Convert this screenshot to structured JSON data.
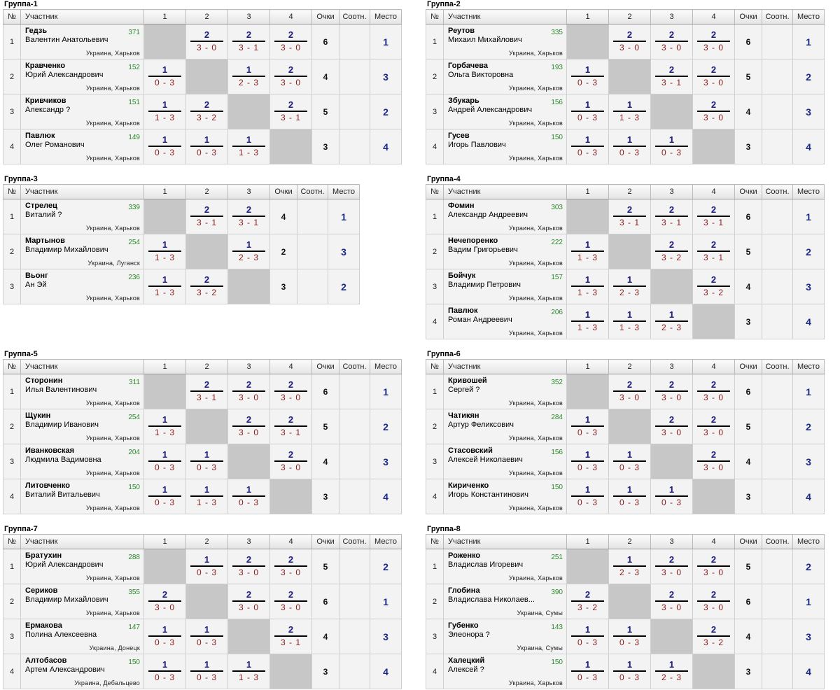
{
  "headers": {
    "num": "№",
    "player": "Участник",
    "points": "Очки",
    "ratio": "Соотн.",
    "place": "Место"
  },
  "groups": [
    {
      "title": "Группа-1",
      "players": [
        {
          "n": "1",
          "surname": "Гедзь",
          "given": "Валентин Анатольевич",
          "rating": "371",
          "loc": "Украина, Харьков",
          "results": [
            null,
            [
              "2",
              "3 - 0"
            ],
            [
              "2",
              "3 - 1"
            ],
            [
              "2",
              "3 - 0"
            ]
          ],
          "points": "6",
          "ratio": "",
          "place": "1"
        },
        {
          "n": "2",
          "surname": "Кравченко",
          "given": "Юрий Александрович",
          "rating": "152",
          "loc": "Украина, Харьков",
          "results": [
            [
              "1",
              "0 - 3"
            ],
            null,
            [
              "1",
              "2 - 3"
            ],
            [
              "2",
              "3 - 0"
            ]
          ],
          "points": "4",
          "ratio": "",
          "place": "3"
        },
        {
          "n": "3",
          "surname": "Кривчиков",
          "given": "Александр ?",
          "rating": "151",
          "loc": "Украина, Харьков",
          "results": [
            [
              "1",
              "1 - 3"
            ],
            [
              "2",
              "3 - 2"
            ],
            null,
            [
              "2",
              "3 - 1"
            ]
          ],
          "points": "5",
          "ratio": "",
          "place": "2"
        },
        {
          "n": "4",
          "surname": "Павлюк",
          "given": "Олег Романович",
          "rating": "149",
          "loc": "Украина, Харьков",
          "results": [
            [
              "1",
              "0 - 3"
            ],
            [
              "1",
              "0 - 3"
            ],
            [
              "1",
              "1 - 3"
            ],
            null
          ],
          "points": "3",
          "ratio": "",
          "place": "4"
        }
      ]
    },
    {
      "title": "Группа-2",
      "players": [
        {
          "n": "1",
          "surname": "Реутов",
          "given": "Михаил Михайлович",
          "rating": "335",
          "loc": "Украина, Харьков",
          "results": [
            null,
            [
              "2",
              "3 - 0"
            ],
            [
              "2",
              "3 - 0"
            ],
            [
              "2",
              "3 - 0"
            ]
          ],
          "points": "6",
          "ratio": "",
          "place": "1"
        },
        {
          "n": "2",
          "surname": "Горбачева",
          "given": "Ольга Викторовна",
          "rating": "193",
          "loc": "Украина, Харьков",
          "results": [
            [
              "1",
              "0 - 3"
            ],
            null,
            [
              "2",
              "3 - 1"
            ],
            [
              "2",
              "3 - 0"
            ]
          ],
          "points": "5",
          "ratio": "",
          "place": "2"
        },
        {
          "n": "3",
          "surname": "Збукарь",
          "given": "Андрей Александрович",
          "rating": "156",
          "loc": "Украина, Харьков",
          "results": [
            [
              "1",
              "0 - 3"
            ],
            [
              "1",
              "1 - 3"
            ],
            null,
            [
              "2",
              "3 - 0"
            ]
          ],
          "points": "4",
          "ratio": "",
          "place": "3"
        },
        {
          "n": "4",
          "surname": "Гусев",
          "given": "Игорь Павлович",
          "rating": "150",
          "loc": "Украина, Харьков",
          "results": [
            [
              "1",
              "0 - 3"
            ],
            [
              "1",
              "0 - 3"
            ],
            [
              "1",
              "0 - 3"
            ],
            null
          ],
          "points": "3",
          "ratio": "",
          "place": "4"
        }
      ]
    },
    {
      "title": "Группа-3",
      "players": [
        {
          "n": "1",
          "surname": "Стрелец",
          "given": "Виталий ?",
          "rating": "339",
          "loc": "Украина, Харьков",
          "results": [
            null,
            [
              "2",
              "3 - 1"
            ],
            [
              "2",
              "3 - 1"
            ]
          ],
          "points": "4",
          "ratio": "",
          "place": "1"
        },
        {
          "n": "2",
          "surname": "Мартынов",
          "given": "Владимир Михайлович",
          "rating": "254",
          "loc": "Украина, Луганск",
          "results": [
            [
              "1",
              "1 - 3"
            ],
            null,
            [
              "1",
              "2 - 3"
            ]
          ],
          "points": "2",
          "ratio": "",
          "place": "3"
        },
        {
          "n": "3",
          "surname": "Вьонг",
          "given": "Ан Эй",
          "rating": "236",
          "loc": "Украина, Харьков",
          "results": [
            [
              "1",
              "1 - 3"
            ],
            [
              "2",
              "3 - 2"
            ],
            null
          ],
          "points": "3",
          "ratio": "",
          "place": "2"
        }
      ]
    },
    {
      "title": "Группа-4",
      "players": [
        {
          "n": "1",
          "surname": "Фомин",
          "given": "Александр Андреевич",
          "rating": "303",
          "loc": "Украина, Харьков",
          "results": [
            null,
            [
              "2",
              "3 - 1"
            ],
            [
              "2",
              "3 - 1"
            ],
            [
              "2",
              "3 - 1"
            ]
          ],
          "points": "6",
          "ratio": "",
          "place": "1"
        },
        {
          "n": "2",
          "surname": "Нечепоренко",
          "given": "Вадим Григорьевич",
          "rating": "222",
          "loc": "Украина, Харьков",
          "results": [
            [
              "1",
              "1 - 3"
            ],
            null,
            [
              "2",
              "3 - 2"
            ],
            [
              "2",
              "3 - 1"
            ]
          ],
          "points": "5",
          "ratio": "",
          "place": "2"
        },
        {
          "n": "3",
          "surname": "Бойчук",
          "given": "Владимир Петрович",
          "rating": "157",
          "loc": "Украина, Харьков",
          "results": [
            [
              "1",
              "1 - 3"
            ],
            [
              "1",
              "2 - 3"
            ],
            null,
            [
              "2",
              "3 - 2"
            ]
          ],
          "points": "4",
          "ratio": "",
          "place": "3"
        },
        {
          "n": "4",
          "surname": "Павлюк",
          "given": "Роман Андреевич",
          "rating": "206",
          "loc": "Украина, Харьков",
          "results": [
            [
              "1",
              "1 - 3"
            ],
            [
              "1",
              "1 - 3"
            ],
            [
              "1",
              "2 - 3"
            ],
            null
          ],
          "points": "3",
          "ratio": "",
          "place": "4"
        }
      ]
    },
    {
      "title": "Группа-5",
      "players": [
        {
          "n": "1",
          "surname": "Сторонин",
          "given": "Илья Валентинович",
          "rating": "311",
          "loc": "Украина, Харьков",
          "results": [
            null,
            [
              "2",
              "3 - 1"
            ],
            [
              "2",
              "3 - 0"
            ],
            [
              "2",
              "3 - 0"
            ]
          ],
          "points": "6",
          "ratio": "",
          "place": "1"
        },
        {
          "n": "2",
          "surname": "Щукин",
          "given": "Владимир Иванович",
          "rating": "254",
          "loc": "Украина, Харьков",
          "results": [
            [
              "1",
              "1 - 3"
            ],
            null,
            [
              "2",
              "3 - 0"
            ],
            [
              "2",
              "3 - 1"
            ]
          ],
          "points": "5",
          "ratio": "",
          "place": "2"
        },
        {
          "n": "3",
          "surname": "Иванковская",
          "given": "Людмила Вадимовна",
          "rating": "204",
          "loc": "Украина, Харьков",
          "results": [
            [
              "1",
              "0 - 3"
            ],
            [
              "1",
              "0 - 3"
            ],
            null,
            [
              "2",
              "3 - 0"
            ]
          ],
          "points": "4",
          "ratio": "",
          "place": "3"
        },
        {
          "n": "4",
          "surname": "Литовченко",
          "given": "Виталий Витальевич",
          "rating": "150",
          "loc": "Украина, Харьков",
          "results": [
            [
              "1",
              "0 - 3"
            ],
            [
              "1",
              "1 - 3"
            ],
            [
              "1",
              "0 - 3"
            ],
            null
          ],
          "points": "3",
          "ratio": "",
          "place": "4"
        }
      ]
    },
    {
      "title": "Группа-6",
      "players": [
        {
          "n": "1",
          "surname": "Кривошей",
          "given": "Сергей ?",
          "rating": "352",
          "loc": "Украина, Харьков",
          "results": [
            null,
            [
              "2",
              "3 - 0"
            ],
            [
              "2",
              "3 - 0"
            ],
            [
              "2",
              "3 - 0"
            ]
          ],
          "points": "6",
          "ratio": "",
          "place": "1"
        },
        {
          "n": "2",
          "surname": "Чатикян",
          "given": "Артур Феликсович",
          "rating": "284",
          "loc": "Украина, Харьков",
          "results": [
            [
              "1",
              "0 - 3"
            ],
            null,
            [
              "2",
              "3 - 0"
            ],
            [
              "2",
              "3 - 0"
            ]
          ],
          "points": "5",
          "ratio": "",
          "place": "2"
        },
        {
          "n": "3",
          "surname": "Стасовский",
          "given": "Алексей Николаевич",
          "rating": "156",
          "loc": "Украина, Харьков",
          "results": [
            [
              "1",
              "0 - 3"
            ],
            [
              "1",
              "0 - 3"
            ],
            null,
            [
              "2",
              "3 - 0"
            ]
          ],
          "points": "4",
          "ratio": "",
          "place": "3"
        },
        {
          "n": "4",
          "surname": "Кириченко",
          "given": "Игорь Константинович",
          "rating": "150",
          "loc": "Украина, Харьков",
          "results": [
            [
              "1",
              "0 - 3"
            ],
            [
              "1",
              "0 - 3"
            ],
            [
              "1",
              "0 - 3"
            ],
            null
          ],
          "points": "3",
          "ratio": "",
          "place": "4"
        }
      ]
    },
    {
      "title": "Группа-7",
      "players": [
        {
          "n": "1",
          "surname": "Братухин",
          "given": "Юрий Александрович",
          "rating": "288",
          "loc": "Украина, Харьков",
          "results": [
            null,
            [
              "1",
              "0 - 3"
            ],
            [
              "2",
              "3 - 0"
            ],
            [
              "2",
              "3 - 0"
            ]
          ],
          "points": "5",
          "ratio": "",
          "place": "2"
        },
        {
          "n": "2",
          "surname": "Сериков",
          "given": "Владимир Михайлович",
          "rating": "355",
          "loc": "Украина, Харьков",
          "results": [
            [
              "2",
              "3 - 0"
            ],
            null,
            [
              "2",
              "3 - 0"
            ],
            [
              "2",
              "3 - 0"
            ]
          ],
          "points": "6",
          "ratio": "",
          "place": "1"
        },
        {
          "n": "3",
          "surname": "Ермакова",
          "given": "Полина Алексеевна",
          "rating": "147",
          "loc": "Украина, Донецк",
          "results": [
            [
              "1",
              "0 - 3"
            ],
            [
              "1",
              "0 - 3"
            ],
            null,
            [
              "2",
              "3 - 1"
            ]
          ],
          "points": "4",
          "ratio": "",
          "place": "3"
        },
        {
          "n": "4",
          "surname": "Алтобасов",
          "given": "Артем Александрович",
          "rating": "150",
          "loc": "Украина, Дебальцево",
          "results": [
            [
              "1",
              "0 - 3"
            ],
            [
              "1",
              "0 - 3"
            ],
            [
              "1",
              "1 - 3"
            ],
            null
          ],
          "points": "3",
          "ratio": "",
          "place": "4"
        }
      ]
    },
    {
      "title": "Группа-8",
      "players": [
        {
          "n": "1",
          "surname": "Роженко",
          "given": "Владислав Игоревич",
          "rating": "251",
          "loc": "Украина, Харьков",
          "results": [
            null,
            [
              "1",
              "2 - 3"
            ],
            [
              "2",
              "3 - 0"
            ],
            [
              "2",
              "3 - 0"
            ]
          ],
          "points": "5",
          "ratio": "",
          "place": "2"
        },
        {
          "n": "2",
          "surname": "Глобина",
          "given": "Владислава Николаев...",
          "rating": "390",
          "loc": "Украина, Сумы",
          "results": [
            [
              "2",
              "3 - 2"
            ],
            null,
            [
              "2",
              "3 - 0"
            ],
            [
              "2",
              "3 - 0"
            ]
          ],
          "points": "6",
          "ratio": "",
          "place": "1"
        },
        {
          "n": "3",
          "surname": "Губенко",
          "given": "Элеонора ?",
          "rating": "143",
          "loc": "Украина, Сумы",
          "results": [
            [
              "1",
              "0 - 3"
            ],
            [
              "1",
              "0 - 3"
            ],
            null,
            [
              "2",
              "3 - 2"
            ]
          ],
          "points": "4",
          "ratio": "",
          "place": "3"
        },
        {
          "n": "4",
          "surname": "Халецкий",
          "given": "Алексей ?",
          "rating": "150",
          "loc": "Украина, Харьков",
          "results": [
            [
              "1",
              "0 - 3"
            ],
            [
              "1",
              "0 - 3"
            ],
            [
              "1",
              "2 - 3"
            ],
            null
          ],
          "points": "3",
          "ratio": "",
          "place": "4"
        }
      ]
    }
  ]
}
